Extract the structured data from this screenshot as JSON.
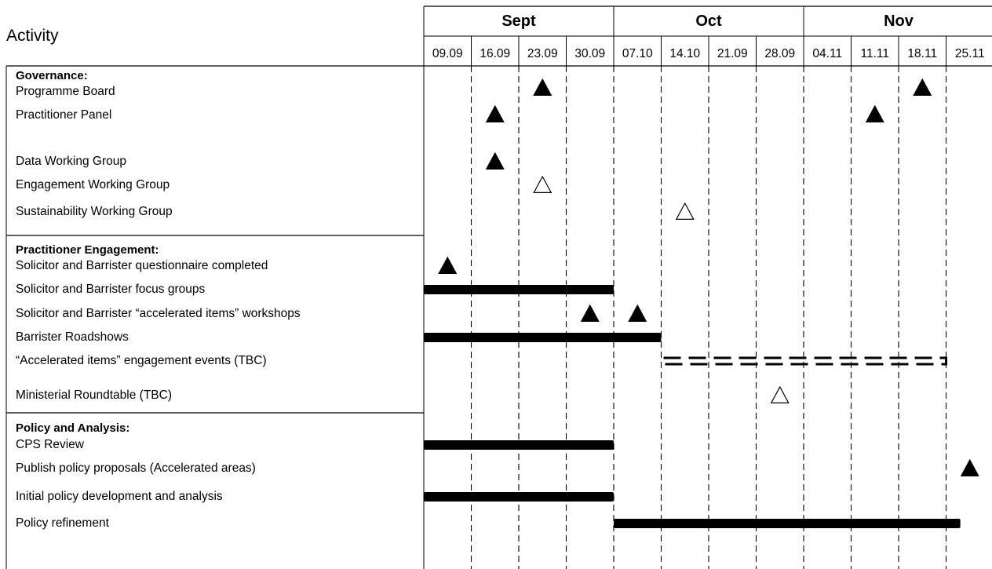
{
  "header": {
    "activity_label": "Activity"
  },
  "months": [
    {
      "name": "Sept",
      "weeks": 4
    },
    {
      "name": "Oct",
      "weeks": 4
    },
    {
      "name": "Nov",
      "weeks": 4
    }
  ],
  "weeks": [
    "09.09",
    "16.09",
    "23.09",
    "30.09",
    "07.10",
    "14.10",
    "21.09",
    "28.09",
    "04.11",
    "11.11",
    "18.11",
    "25.11"
  ],
  "sections": [
    {
      "title": "Governance:",
      "rows": [
        {
          "label": "Programme Board",
          "items": [
            {
              "kind": "milestone",
              "filled": true,
              "week": 2
            },
            {
              "kind": "milestone",
              "filled": true,
              "week": 10
            }
          ]
        },
        {
          "label": "Practitioner Panel",
          "items": [
            {
              "kind": "milestone",
              "filled": true,
              "week": 1
            },
            {
              "kind": "milestone",
              "filled": true,
              "week": 9
            }
          ]
        },
        {
          "label": "Data Working Group",
          "items": [
            {
              "kind": "milestone",
              "filled": true,
              "week": 1
            }
          ]
        },
        {
          "label": "Engagement Working Group",
          "items": [
            {
              "kind": "milestone",
              "filled": false,
              "week": 2
            }
          ]
        },
        {
          "label": "Sustainability Working Group",
          "items": [
            {
              "kind": "milestone",
              "filled": false,
              "week": 5
            }
          ]
        }
      ]
    },
    {
      "title": "Practitioner Engagement:",
      "rows": [
        {
          "label": "Solicitor and Barrister questionnaire completed",
          "items": [
            {
              "kind": "milestone",
              "filled": true,
              "week": 0
            }
          ]
        },
        {
          "label": "Solicitor and Barrister focus groups",
          "items": [
            {
              "kind": "bar",
              "style": "solid",
              "start_week": 0,
              "end_week": 4
            }
          ]
        },
        {
          "label": "Solicitor and Barrister “accelerated items” workshops",
          "items": [
            {
              "kind": "milestone",
              "filled": true,
              "week": 3
            },
            {
              "kind": "milestone",
              "filled": true,
              "week": 4
            }
          ]
        },
        {
          "label": "Barrister Roadshows",
          "items": [
            {
              "kind": "bar",
              "style": "solid",
              "start_week": 0,
              "end_week": 5
            }
          ]
        },
        {
          "label": "“Accelerated items” engagement events (TBC)",
          "items": [
            {
              "kind": "bar",
              "style": "dashed",
              "start_week": 5,
              "end_week": 11
            }
          ]
        },
        {
          "label": "Ministerial Roundtable (TBC)",
          "items": [
            {
              "kind": "milestone",
              "filled": false,
              "week": 7
            }
          ]
        }
      ]
    },
    {
      "title": "Policy and Analysis:",
      "rows": [
        {
          "label": "CPS Review",
          "items": [
            {
              "kind": "bar",
              "style": "solid",
              "start_week": 0,
              "end_week": 4
            }
          ]
        },
        {
          "label": "Publish policy proposals (Accelerated areas)",
          "items": [
            {
              "kind": "milestone",
              "filled": true,
              "week": 11
            }
          ]
        },
        {
          "label": "Initial policy development and analysis",
          "items": [
            {
              "kind": "bar",
              "style": "solid",
              "start_week": 0,
              "end_week": 4
            }
          ]
        },
        {
          "label": "Policy refinement",
          "items": [
            {
              "kind": "bar",
              "style": "solid",
              "start_week": 4,
              "end_week": 11.3
            }
          ]
        }
      ]
    }
  ]
}
